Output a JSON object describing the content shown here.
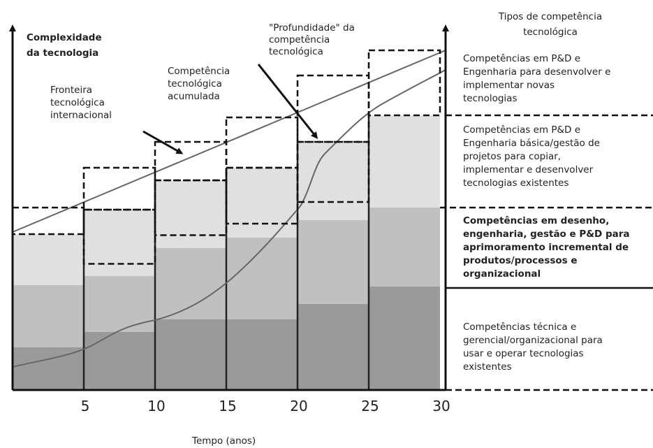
{
  "y_axis_label": [
    "Complexidade",
    "da tecnologia"
  ],
  "x_axis_label": "Tempo (anos)",
  "x_ticks": [
    "5",
    "10",
    "15",
    "20",
    "25",
    "30"
  ],
  "right_title": [
    "Tipos de competência",
    "tecnológica"
  ],
  "annotations": {
    "frontier": [
      "Fronteira",
      "tecnológica",
      "internacional"
    ],
    "accumulated": [
      "Competência",
      "tecnológica",
      "acumulada"
    ],
    "depth": [
      "\"Profundidade\" da",
      "competência",
      "tecnológica"
    ]
  },
  "levels": [
    [
      "Competências em P&D e",
      "Engenharia para desenvolver e",
      "implementar novas",
      "tecnologias"
    ],
    [
      "Competências em P&D e",
      "Engenharia básica/gestão de",
      "projetos para copiar,",
      "implementar e desenvolver",
      "tecnologias existentes"
    ],
    [
      "Competências em desenho,",
      "engenharia, gestão e P&D para",
      "aprimoramento incremental de",
      "produtos/processos e",
      "organizacional"
    ],
    [
      "Competências técnica e",
      "gerencial/organizacional para",
      "usar e operar tecnologias",
      "existentes"
    ]
  ]
}
